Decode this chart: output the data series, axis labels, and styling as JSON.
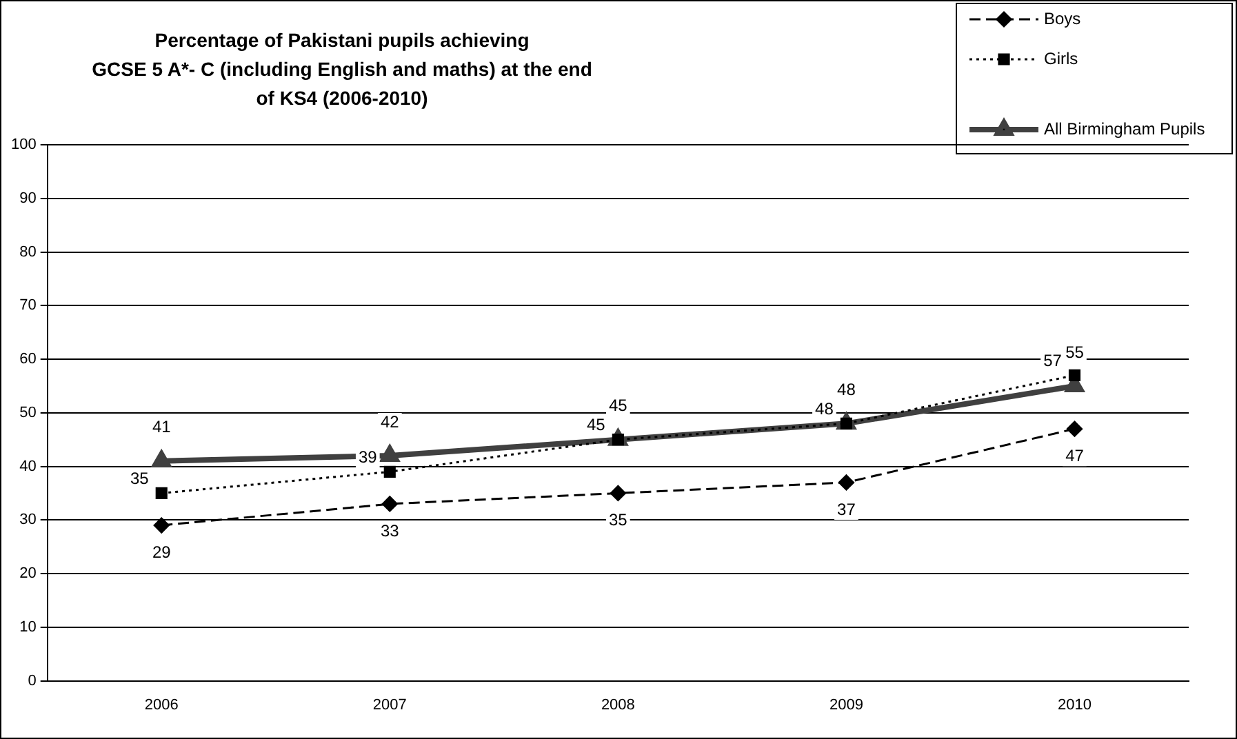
{
  "chart_data": {
    "type": "line",
    "title": "Percentage of Pakistani pupils achieving\nGCSE 5 A*- C (including English and maths) at the end\nof KS4 (2006-2010)",
    "categories": [
      "2006",
      "2007",
      "2008",
      "2009",
      "2010"
    ],
    "series": [
      {
        "name": "Boys",
        "color": "#000000",
        "values": [
          29,
          33,
          35,
          37,
          47
        ],
        "marker": "diamond",
        "line_style": "dashed"
      },
      {
        "name": "Girls",
        "color": "#000000",
        "values": [
          35,
          39,
          45,
          48,
          57
        ],
        "marker": "square",
        "line_style": "dotted"
      },
      {
        "name": "All Birmingham Pupils",
        "color": "#404040",
        "values": [
          41,
          42,
          45,
          48,
          55
        ],
        "marker": "triangle",
        "line_style": "solid"
      }
    ],
    "ylim": [
      0,
      100
    ],
    "yticks": [
      0,
      10,
      20,
      30,
      40,
      50,
      60,
      70,
      80,
      90,
      100
    ],
    "grid": "y",
    "legend": "top right",
    "data_labels": true
  }
}
